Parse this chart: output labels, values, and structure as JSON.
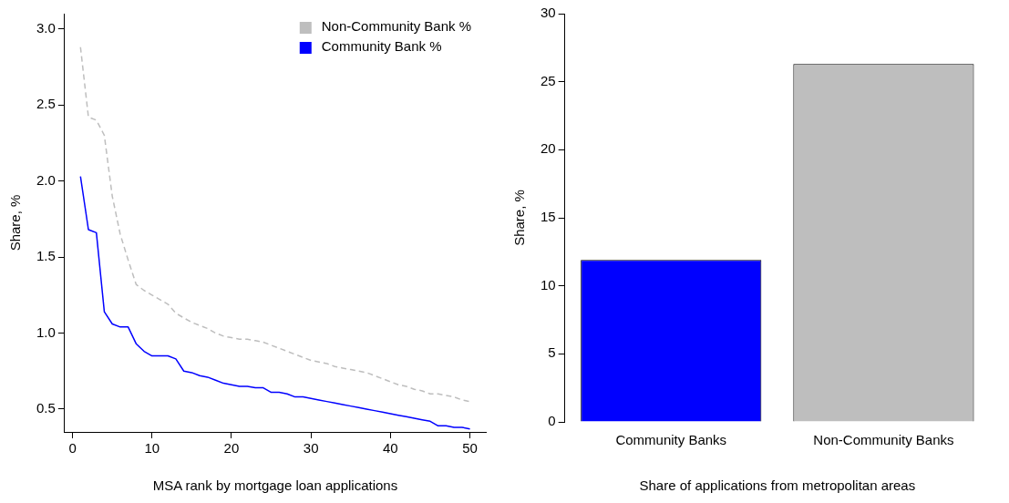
{
  "chart_data": [
    {
      "type": "line",
      "xlabel": "MSA rank by mortgage loan applications",
      "ylabel": "Share, %",
      "x": [
        1,
        2,
        3,
        4,
        5,
        6,
        7,
        8,
        9,
        10,
        11,
        12,
        13,
        14,
        15,
        16,
        17,
        18,
        19,
        20,
        21,
        22,
        23,
        24,
        25,
        26,
        27,
        28,
        29,
        30,
        31,
        32,
        33,
        34,
        35,
        36,
        37,
        38,
        39,
        40,
        41,
        42,
        43,
        44,
        45,
        46,
        47,
        48,
        49,
        50
      ],
      "series": [
        {
          "name": "Non-Community Bank %",
          "color": "#bebebe",
          "line_style": "dashed",
          "values": [
            2.88,
            2.42,
            2.4,
            2.3,
            1.9,
            1.65,
            1.48,
            1.32,
            1.28,
            1.25,
            1.22,
            1.19,
            1.13,
            1.1,
            1.07,
            1.05,
            1.03,
            1.0,
            0.98,
            0.97,
            0.96,
            0.96,
            0.95,
            0.94,
            0.92,
            0.9,
            0.88,
            0.86,
            0.84,
            0.82,
            0.81,
            0.8,
            0.78,
            0.77,
            0.76,
            0.75,
            0.74,
            0.72,
            0.7,
            0.68,
            0.66,
            0.65,
            0.63,
            0.62,
            0.6,
            0.6,
            0.59,
            0.58,
            0.56,
            0.55
          ]
        },
        {
          "name": "Community Bank %",
          "color": "#0000ff",
          "line_style": "solid",
          "values": [
            2.03,
            1.68,
            1.66,
            1.14,
            1.06,
            1.04,
            1.04,
            0.93,
            0.88,
            0.85,
            0.85,
            0.85,
            0.83,
            0.75,
            0.74,
            0.72,
            0.71,
            0.69,
            0.67,
            0.66,
            0.65,
            0.65,
            0.64,
            0.64,
            0.61,
            0.61,
            0.6,
            0.58,
            0.58,
            0.57,
            0.56,
            0.55,
            0.54,
            0.53,
            0.52,
            0.51,
            0.5,
            0.49,
            0.48,
            0.47,
            0.46,
            0.45,
            0.44,
            0.43,
            0.42,
            0.39,
            0.39,
            0.38,
            0.38,
            0.37
          ]
        }
      ],
      "xlim": [
        -1,
        52
      ],
      "xticks": [
        0,
        10,
        20,
        30,
        40,
        50
      ],
      "ylim": [
        0.35,
        3.1
      ],
      "yticks": [
        0.5,
        {
          "value": 1,
          "label": "1.0"
        },
        1.5,
        {
          "value": 2,
          "label": "2.0"
        },
        2.5,
        {
          "value": 3,
          "label": "3.0"
        }
      ],
      "grid": false,
      "legend": "top right",
      "marker": "none"
    },
    {
      "type": "bar",
      "xlabel": "Share of applications from metropolitan areas",
      "ylabel": "Share, %",
      "categories": [
        "Community Banks",
        "Non-Community Banks"
      ],
      "values": [
        11.9,
        26.3
      ],
      "colors": [
        "#0000ff",
        "#bebebe"
      ],
      "ylim": [
        0,
        30
      ],
      "yticks": [
        0,
        5,
        10,
        15,
        20,
        25,
        30
      ],
      "grid": false,
      "legend": false
    }
  ]
}
